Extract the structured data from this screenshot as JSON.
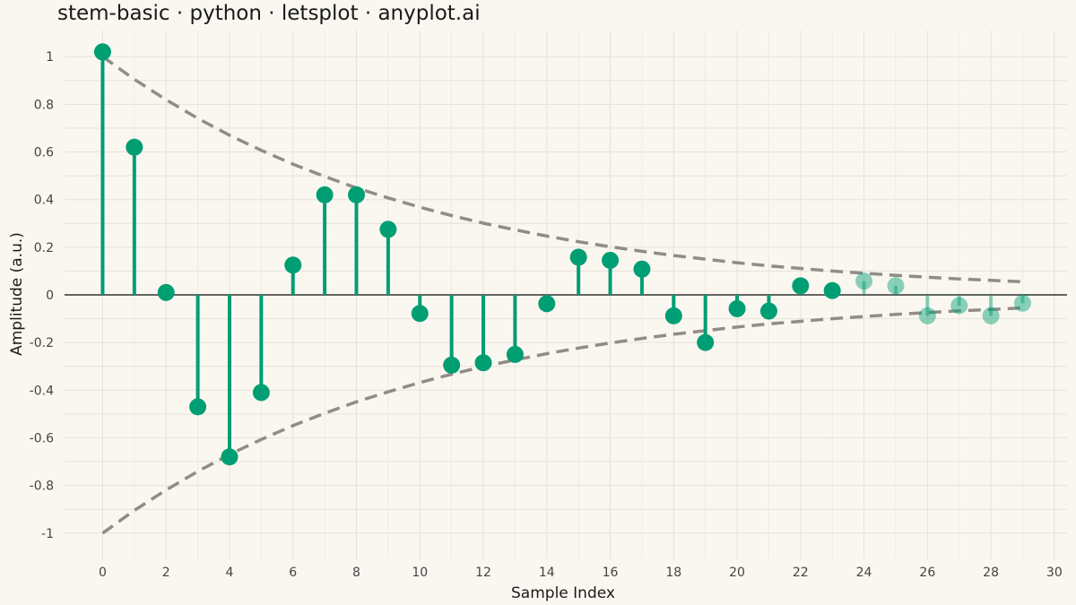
{
  "title": "stem-basic · python · letsplot · anyplot.ai",
  "chart_data": {
    "type": "stem",
    "title": "stem-basic · python · letsplot · anyplot.ai",
    "xlabel": "Sample Index",
    "ylabel": "Amplitude (a.u.)",
    "xlim": [
      -1.2,
      30.4
    ],
    "ylim": [
      -1.11,
      1.11
    ],
    "x_ticks": [
      0,
      2,
      4,
      6,
      8,
      10,
      12,
      14,
      16,
      18,
      20,
      22,
      24,
      26,
      28,
      30
    ],
    "y_ticks": [
      -1,
      -0.8,
      -0.6,
      -0.4,
      -0.2,
      0,
      0.2,
      0.4,
      0.6,
      0.8,
      1
    ],
    "x_tick_labels": [
      "0",
      "2",
      "4",
      "6",
      "8",
      "10",
      "12",
      "14",
      "16",
      "18",
      "20",
      "22",
      "24",
      "26",
      "28",
      "30"
    ],
    "y_tick_labels": [
      "-1",
      "-0.8",
      "-0.6",
      "-0.4",
      "-0.2",
      "0",
      "0.2",
      "0.4",
      "0.6",
      "0.8",
      "1"
    ],
    "grid": true,
    "baseline": 0,
    "series": [
      {
        "x": [
          0,
          1,
          2,
          3,
          4,
          5,
          6,
          7,
          8,
          9,
          10,
          11,
          12,
          13,
          14,
          15,
          16,
          17,
          18,
          19,
          20,
          21,
          22,
          23,
          24,
          25,
          26,
          27,
          28,
          29
        ],
        "values": [
          1.02,
          0.62,
          0.01,
          -0.47,
          -0.68,
          -0.41,
          0.125,
          0.42,
          0.42,
          0.275,
          -0.078,
          -0.295,
          -0.285,
          -0.25,
          -0.037,
          0.158,
          0.145,
          0.108,
          -0.088,
          -0.2,
          -0.058,
          -0.068,
          0.038,
          0.018,
          0.058,
          0.038,
          -0.088,
          -0.045,
          -0.088,
          -0.035
        ],
        "faded_from_index": 24
      }
    ],
    "envelope": {
      "style": "dashed",
      "x": [
        0,
        1,
        2,
        3,
        4,
        5,
        6,
        7,
        8,
        9,
        10,
        11,
        12,
        13,
        14,
        15,
        16,
        17,
        18,
        19,
        20,
        21,
        22,
        23,
        24,
        25,
        26,
        27,
        28,
        29
      ],
      "upper": [
        1.0,
        0.905,
        0.819,
        0.741,
        0.67,
        0.607,
        0.549,
        0.497,
        0.449,
        0.407,
        0.368,
        0.333,
        0.301,
        0.273,
        0.247,
        0.223,
        0.202,
        0.183,
        0.165,
        0.15,
        0.135,
        0.122,
        0.111,
        0.1,
        0.091,
        0.082,
        0.074,
        0.067,
        0.061,
        0.055
      ],
      "lower": [
        -1.0,
        -0.905,
        -0.819,
        -0.741,
        -0.67,
        -0.607,
        -0.549,
        -0.497,
        -0.449,
        -0.407,
        -0.368,
        -0.333,
        -0.301,
        -0.273,
        -0.247,
        -0.223,
        -0.202,
        -0.183,
        -0.165,
        -0.15,
        -0.135,
        -0.122,
        -0.111,
        -0.1,
        -0.091,
        -0.082,
        -0.074,
        -0.067,
        -0.061,
        -0.055
      ]
    },
    "colors": {
      "stem": "#009E73",
      "envelope": "#908C86",
      "baseline": "#333333",
      "grid": "#E6E2DA",
      "background": "#FAF7F1"
    }
  }
}
